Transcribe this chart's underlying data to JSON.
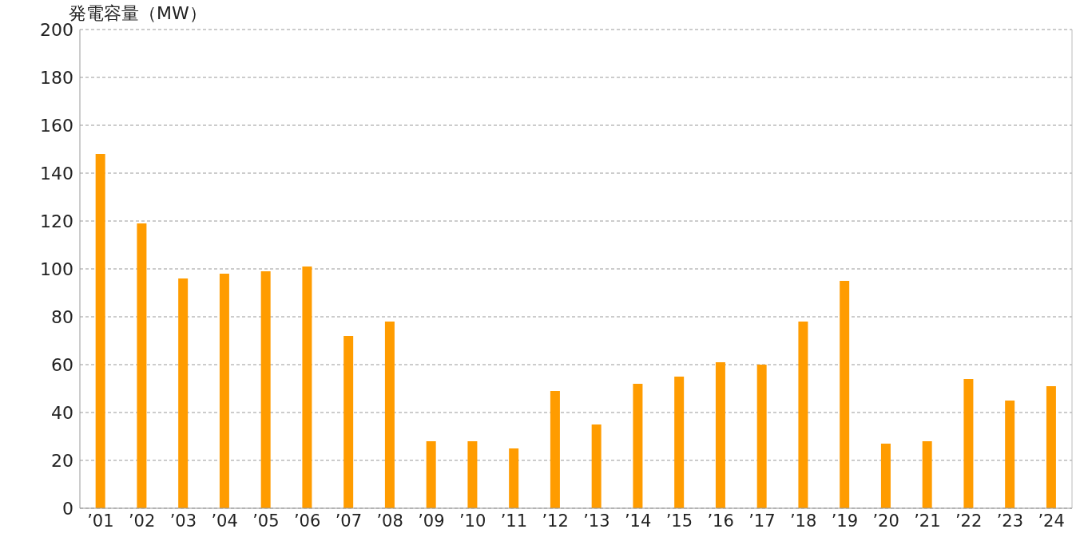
{
  "chart_data": {
    "type": "bar",
    "ylabel": "発電容量（MW）",
    "categories": [
      "’01",
      "’02",
      "’03",
      "’04",
      "’05",
      "’06",
      "’07",
      "’08",
      "’09",
      "’10",
      "’11",
      "’12",
      "’13",
      "’14",
      "’15",
      "’16",
      "’17",
      "’18",
      "’19",
      "’20",
      "’21",
      "’22",
      "’23",
      "’24"
    ],
    "values": [
      148,
      119,
      96,
      98,
      99,
      101,
      72,
      78,
      28,
      28,
      25,
      49,
      35,
      52,
      55,
      61,
      60,
      78,
      95,
      27,
      28,
      54,
      45,
      51
    ],
    "color": "#ff9c00",
    "ylim": [
      0,
      200
    ],
    "yticks": [
      0,
      20,
      40,
      60,
      80,
      100,
      120,
      140,
      160,
      180,
      200
    ],
    "grid": "y"
  }
}
